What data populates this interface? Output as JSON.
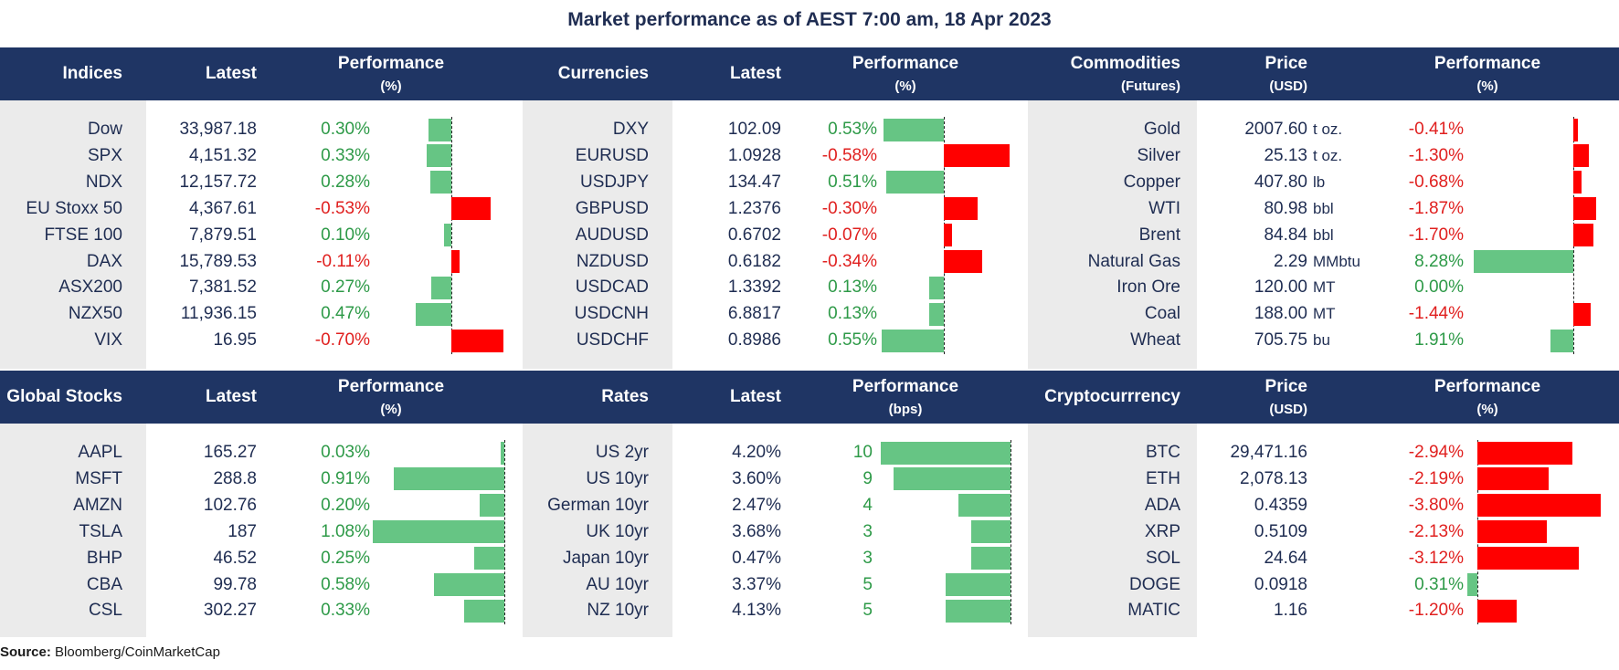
{
  "title": "Market performance as of AEST 7:00 am, 18 Apr 2023",
  "source_label": "Source:",
  "source_text": "Bloomberg/CoinMarketCap",
  "colors": {
    "header": "#1f3564",
    "positive": "#2e9a48",
    "negative": "#e0201f",
    "bar_positive": "#66c584",
    "bar_negative": "#ff0000",
    "shade": "#ebebeb"
  },
  "headers": {
    "top": {
      "indices": "Indices",
      "latest1": "Latest",
      "perf1": "Performance",
      "perf1_unit": "(%)",
      "currencies": "Currencies",
      "latest2": "Latest",
      "perf2": "Performance",
      "perf2_unit": "(%)",
      "commodities": "Commodities",
      "commodities_sub": "(Futures)",
      "price3": "Price",
      "price3_unit": "(USD)",
      "perf3": "Performance",
      "perf3_unit": "(%)"
    },
    "bottom": {
      "global": "Global Stocks",
      "latest1": "Latest",
      "perf1": "Performance",
      "perf1_unit": "(%)",
      "rates": "Rates",
      "latest2": "Latest",
      "perf2": "Performance",
      "perf2_unit": "(bps)",
      "crypto": "Cryptocurrrency",
      "price3": "Price",
      "price3_unit": "(USD)",
      "perf3": "Performance",
      "perf3_unit": "(%)"
    }
  },
  "chart_data": [
    {
      "type": "bar",
      "title": "Indices",
      "rows": [
        {
          "name": "Dow",
          "latest": "33,987.18",
          "perf": 0.3,
          "label": "0.30%"
        },
        {
          "name": "SPX",
          "latest": "4,151.32",
          "perf": 0.33,
          "label": "0.33%"
        },
        {
          "name": "NDX",
          "latest": "12,157.72",
          "perf": 0.28,
          "label": "0.28%"
        },
        {
          "name": "EU Stoxx 50",
          "latest": "4,367.61",
          "perf": -0.53,
          "label": "-0.53%"
        },
        {
          "name": "FTSE 100",
          "latest": "7,879.51",
          "perf": 0.1,
          "label": "0.10%"
        },
        {
          "name": "DAX",
          "latest": "15,789.53",
          "perf": -0.11,
          "label": "-0.11%"
        },
        {
          "name": "ASX200",
          "latest": "7,381.52",
          "perf": 0.27,
          "label": "0.27%"
        },
        {
          "name": "NZX50",
          "latest": "11,936.15",
          "perf": 0.47,
          "label": "0.47%"
        },
        {
          "name": "VIX",
          "latest": "16.95",
          "perf": -0.7,
          "label": "-0.70%"
        }
      ]
    },
    {
      "type": "bar",
      "title": "Currencies",
      "rows": [
        {
          "name": "DXY",
          "latest": "102.09",
          "perf": 0.53,
          "label": "0.53%"
        },
        {
          "name": "EURUSD",
          "latest": "1.0928",
          "perf": -0.58,
          "label": "-0.58%"
        },
        {
          "name": "USDJPY",
          "latest": "134.47",
          "perf": 0.51,
          "label": "0.51%"
        },
        {
          "name": "GBPUSD",
          "latest": "1.2376",
          "perf": -0.3,
          "label": "-0.30%"
        },
        {
          "name": "AUDUSD",
          "latest": "0.6702",
          "perf": -0.07,
          "label": "-0.07%"
        },
        {
          "name": "NZDUSD",
          "latest": "0.6182",
          "perf": -0.34,
          "label": "-0.34%"
        },
        {
          "name": "USDCAD",
          "latest": "1.3392",
          "perf": 0.13,
          "label": "0.13%"
        },
        {
          "name": "USDCNH",
          "latest": "6.8817",
          "perf": 0.13,
          "label": "0.13%"
        },
        {
          "name": "USDCHF",
          "latest": "0.8986",
          "perf": 0.55,
          "label": "0.55%"
        }
      ]
    },
    {
      "type": "bar",
      "title": "Commodities (Futures)",
      "rows": [
        {
          "name": "Gold",
          "latest": "2007.60",
          "unit": "t oz.",
          "perf": -0.41,
          "label": "-0.41%"
        },
        {
          "name": "Silver",
          "latest": "25.13",
          "unit": "t oz.",
          "perf": -1.3,
          "label": "-1.30%"
        },
        {
          "name": "Copper",
          "latest": "407.80",
          "unit": "lb",
          "perf": -0.68,
          "label": "-0.68%"
        },
        {
          "name": "WTI",
          "latest": "80.98",
          "unit": "bbl",
          "perf": -1.87,
          "label": "-1.87%"
        },
        {
          "name": "Brent",
          "latest": "84.84",
          "unit": "bbl",
          "perf": -1.7,
          "label": "-1.70%"
        },
        {
          "name": "Natural Gas",
          "latest": "2.29",
          "unit": "MMbtu",
          "perf": 8.28,
          "label": "8.28%"
        },
        {
          "name": "Iron Ore",
          "latest": "120.00",
          "unit": "MT",
          "perf": 0.0,
          "label": "0.00%"
        },
        {
          "name": "Coal",
          "latest": "188.00",
          "unit": "MT",
          "perf": -1.44,
          "label": "-1.44%"
        },
        {
          "name": "Wheat",
          "latest": "705.75",
          "unit": "bu",
          "perf": 1.91,
          "label": "1.91%"
        }
      ]
    },
    {
      "type": "bar",
      "title": "Global Stocks",
      "rows": [
        {
          "name": "AAPL",
          "latest": "165.27",
          "perf": 0.03,
          "label": "0.03%"
        },
        {
          "name": "MSFT",
          "latest": "288.8",
          "perf": 0.91,
          "label": "0.91%"
        },
        {
          "name": "AMZN",
          "latest": "102.76",
          "perf": 0.2,
          "label": "0.20%"
        },
        {
          "name": "TSLA",
          "latest": "187",
          "perf": 1.08,
          "label": "1.08%"
        },
        {
          "name": "BHP",
          "latest": "46.52",
          "perf": 0.25,
          "label": "0.25%"
        },
        {
          "name": "CBA",
          "latest": "99.78",
          "perf": 0.58,
          "label": "0.58%"
        },
        {
          "name": "CSL",
          "latest": "302.27",
          "perf": 0.33,
          "label": "0.33%"
        }
      ]
    },
    {
      "type": "bar",
      "title": "Rates",
      "rows": [
        {
          "name": "US 2yr",
          "latest": "4.20%",
          "perf": 10,
          "label": "10"
        },
        {
          "name": "US 10yr",
          "latest": "3.60%",
          "perf": 9,
          "label": "9"
        },
        {
          "name": "German 10yr",
          "latest": "2.47%",
          "perf": 4,
          "label": "4"
        },
        {
          "name": "UK 10yr",
          "latest": "3.68%",
          "perf": 3,
          "label": "3"
        },
        {
          "name": "Japan 10yr",
          "latest": "0.47%",
          "perf": 3,
          "label": "3"
        },
        {
          "name": "AU 10yr",
          "latest": "3.37%",
          "perf": 5,
          "label": "5"
        },
        {
          "name": "NZ 10yr",
          "latest": "4.13%",
          "perf": 5,
          "label": "5"
        }
      ]
    },
    {
      "type": "bar",
      "title": "Cryptocurrrency",
      "rows": [
        {
          "name": "BTC",
          "latest": "29,471.16",
          "perf": -2.94,
          "label": "-2.94%"
        },
        {
          "name": "ETH",
          "latest": "2,078.13",
          "perf": -2.19,
          "label": "-2.19%"
        },
        {
          "name": "ADA",
          "latest": "0.4359",
          "perf": -3.8,
          "label": "-3.80%"
        },
        {
          "name": "XRP",
          "latest": "0.5109",
          "perf": -2.13,
          "label": "-2.13%"
        },
        {
          "name": "SOL",
          "latest": "24.64",
          "perf": -3.12,
          "label": "-3.12%"
        },
        {
          "name": "DOGE",
          "latest": "0.0918",
          "perf": 0.31,
          "label": "0.31%"
        },
        {
          "name": "MATIC",
          "latest": "1.16",
          "perf": -1.2,
          "label": "-1.20%"
        }
      ]
    }
  ]
}
